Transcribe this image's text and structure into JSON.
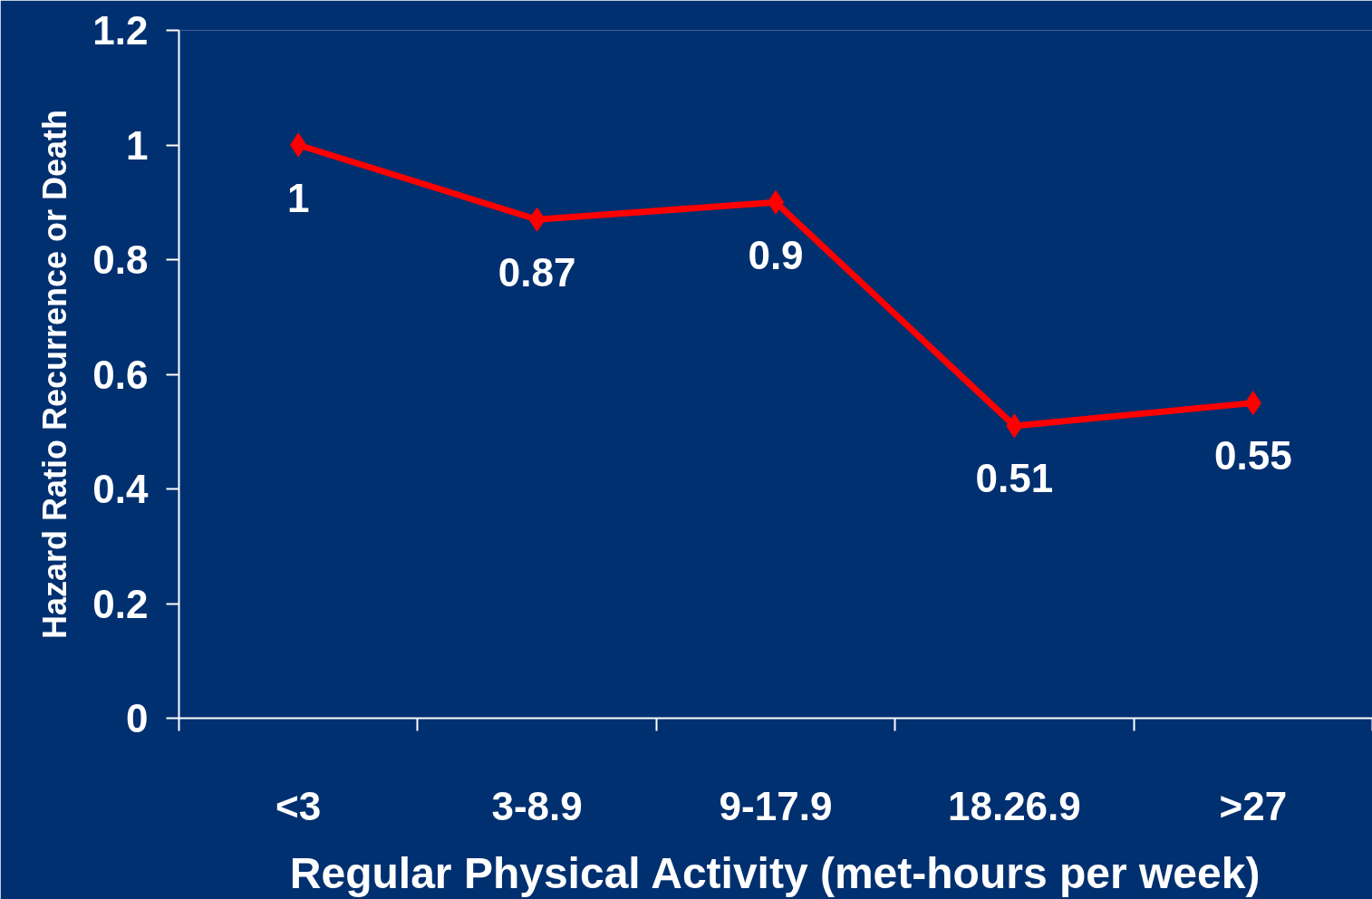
{
  "chart_data": {
    "type": "line",
    "xlabel": "Regular Physical Activity (met-hours per week)",
    "ylabel": "Hazard Ratio Recurrence or Death",
    "categories": [
      "<3",
      "3-8.9",
      "9-17.9",
      "18.26.9",
      ">27"
    ],
    "series": [
      {
        "color": "#ff0000",
        "values": [
          1,
          0.87,
          0.9,
          0.51,
          0.55
        ]
      }
    ],
    "ylim": [
      0,
      1.2
    ],
    "yticks": [
      0,
      0.2,
      0.4,
      0.6,
      0.8,
      1,
      1.2
    ],
    "marker": "diamond",
    "line_style": "solid",
    "data_labels": true,
    "grid": false
  }
}
